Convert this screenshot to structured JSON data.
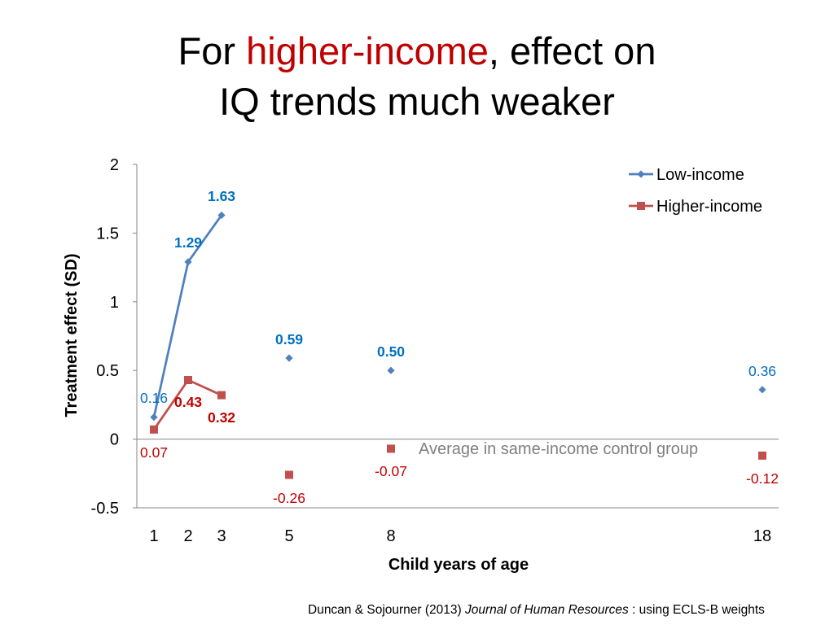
{
  "title": {
    "line1_prefix": "For ",
    "line1_highlight": "higher-income",
    "line1_suffix": ", effect on",
    "line2": "IQ trends much weaker"
  },
  "citation": {
    "authors": "Duncan & Sojourner (2013) ",
    "journal": "Journal of Human Resources",
    "note": " : using ECLS-B weights"
  },
  "colors": {
    "low_income": "#4f81bd",
    "low_income_label": "#0070c0",
    "higher_income": "#c0504d",
    "higher_income_label": "#c00000",
    "highlight": "#c00000",
    "annotation": "#7f7f7f"
  },
  "chart_data": {
    "type": "line",
    "xlabel": "Child years of age",
    "ylabel": "Treatment effect (SD)",
    "ylim": [
      -0.5,
      2
    ],
    "yticks": [
      "2",
      "1.5",
      "1",
      "0.5",
      "0",
      "-0.5"
    ],
    "ytick_values": [
      2,
      1.5,
      1,
      0.5,
      0,
      -0.5
    ],
    "xticks": [
      "1",
      "2",
      "3",
      "5",
      "8",
      "18"
    ],
    "x": [
      1,
      2,
      3,
      5,
      8,
      18
    ],
    "grid": false,
    "legend_position": "top-right",
    "series": [
      {
        "name": "Low-income",
        "marker": "diamond",
        "values": [
          0.16,
          1.29,
          1.63,
          0.59,
          0.5,
          0.36
        ],
        "labels": [
          "0.16",
          "1.29",
          "1.63",
          "0.59",
          "0.50",
          "0.36"
        ],
        "label_bold": [
          false,
          true,
          true,
          true,
          true,
          false
        ],
        "connected_through_index": 2
      },
      {
        "name": "Higher-income",
        "marker": "square",
        "values": [
          0.07,
          0.43,
          0.32,
          -0.26,
          -0.07,
          -0.12
        ],
        "labels": [
          "0.07",
          "0.43",
          "0.32",
          "-0.26",
          "-0.07",
          "-0.12"
        ],
        "label_bold": [
          false,
          true,
          true,
          false,
          false,
          false
        ],
        "connected_through_index": 2
      }
    ],
    "annotation": "Average in same-income control group"
  }
}
